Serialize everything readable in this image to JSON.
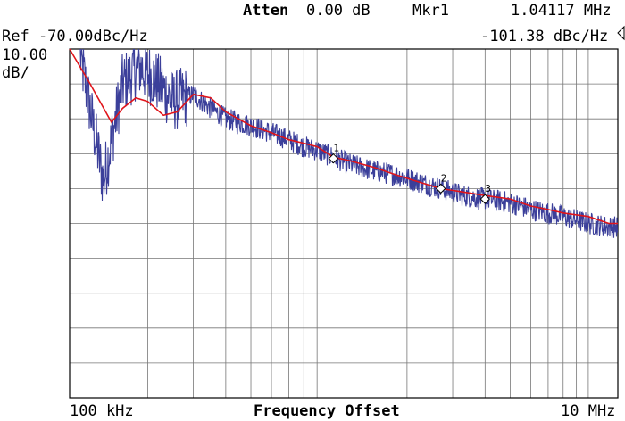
{
  "header": {
    "atten_label": "Atten",
    "atten_value": "0.00 dB",
    "marker_label": "Mkr1",
    "marker_freq": "1.04117 MHz",
    "ref_label": "Ref -70.00dBc/Hz",
    "marker_level": "-101.38 dBc/Hz",
    "scale_value": "10.00",
    "scale_unit": "dB/"
  },
  "colors": {
    "trace": "#3b3f9a",
    "smoothed": "#e0141a",
    "grid": "#777777",
    "frame": "#000000"
  },
  "chart_data": {
    "type": "line",
    "x_scale": "log",
    "xlim_hz": [
      100000,
      13000000
    ],
    "ylim_dbc_hz": [
      -170,
      -70
    ],
    "y_div_db": 10,
    "grid": true,
    "x_start_label": "100 kHz",
    "x_end_label": "10 MHz",
    "xlabel": "Frequency Offset",
    "series": [
      {
        "role": "raw",
        "x_hz": [
          110000,
          135000,
          160000,
          185000,
          210000,
          250000,
          300000,
          350000,
          400000,
          500000,
          600000,
          700000,
          800000,
          900000,
          1040000,
          1200000,
          1500000,
          1800000,
          2200000,
          2700000,
          3300000,
          4000000,
          5000000,
          6000000,
          7000000,
          8000000,
          10000000,
          12000000,
          13000000
        ],
        "y_dbc_hz": [
          -72,
          -108,
          -80,
          -75,
          -78,
          -85,
          -83,
          -87,
          -90,
          -92,
          -94,
          -96,
          -98,
          -99,
          -101,
          -103,
          -105,
          -106,
          -108,
          -110,
          -112,
          -113,
          -114,
          -116,
          -117,
          -118,
          -120,
          -121,
          -121
        ]
      },
      {
        "role": "smoothed",
        "x_hz": [
          100000,
          120000,
          145000,
          160000,
          180000,
          200000,
          230000,
          260000,
          300000,
          350000,
          400000,
          500000,
          600000,
          700000,
          800000,
          900000,
          1040000,
          1200000,
          1500000,
          1800000,
          2200000,
          2700000,
          3300000,
          4000000,
          5000000,
          6000000,
          7000000,
          8000000,
          10000000,
          12000000,
          13000000
        ],
        "y_dbc_hz": [
          -70,
          -80,
          -91,
          -87,
          -84,
          -85,
          -89,
          -88,
          -83,
          -84,
          -88,
          -92,
          -94,
          -96,
          -97,
          -98,
          -101,
          -102,
          -104,
          -106,
          -108,
          -110,
          -111,
          -112,
          -113,
          -115,
          -116,
          -117,
          -118,
          -120,
          -120
        ]
      }
    ],
    "markers": [
      {
        "label": "1",
        "x_hz": 1040000,
        "y_dbc_hz": -101.38
      },
      {
        "label": "2",
        "x_hz": 2700000,
        "y_dbc_hz": -110
      },
      {
        "label": "3",
        "x_hz": 4000000,
        "y_dbc_hz": -113
      }
    ]
  }
}
